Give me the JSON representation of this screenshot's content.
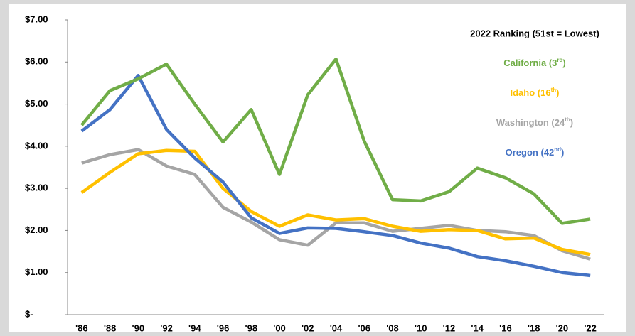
{
  "chart_data": {
    "type": "line",
    "legend_title": "2022 Ranking (51st = Lowest)",
    "legend": "top right",
    "categories": [
      "'86",
      "'88",
      "'90",
      "'92",
      "'94",
      "'96",
      "'98",
      "'00",
      "'02",
      "'04",
      "'06",
      "'08",
      "'10",
      "'12",
      "'14",
      "'16",
      "'18",
      "'20",
      "'22"
    ],
    "series": [
      {
        "name": "California (3rd)",
        "color": "#70ad47",
        "values": [
          4.5,
          5.32,
          5.6,
          5.95,
          5.0,
          4.1,
          4.87,
          3.33,
          5.22,
          6.07,
          4.12,
          2.73,
          2.7,
          2.92,
          3.48,
          3.25,
          2.87,
          2.17,
          2.27
        ]
      },
      {
        "name": "Idaho (16th)",
        "color": "#ffc000",
        "values": [
          2.9,
          3.38,
          3.82,
          3.9,
          3.88,
          3.0,
          2.45,
          2.1,
          2.37,
          2.25,
          2.28,
          2.1,
          1.98,
          2.02,
          2.0,
          1.8,
          1.82,
          1.55,
          1.43
        ]
      },
      {
        "name": "Washington (24th)",
        "color": "#a5a5a5",
        "values": [
          3.6,
          3.8,
          3.92,
          3.53,
          3.33,
          2.55,
          2.2,
          1.78,
          1.65,
          2.18,
          2.18,
          1.98,
          2.05,
          2.12,
          2.0,
          1.97,
          1.88,
          1.52,
          1.32
        ]
      },
      {
        "name": "Oregon (42nd)",
        "color": "#4472c4",
        "values": [
          4.36,
          4.87,
          5.68,
          4.4,
          3.72,
          3.15,
          2.3,
          1.93,
          2.06,
          2.05,
          1.97,
          1.88,
          1.7,
          1.58,
          1.38,
          1.28,
          1.15,
          1.0,
          0.93
        ]
      }
    ],
    "ylim": [
      0,
      7
    ],
    "yticks": [
      {
        "value": 0,
        "label": "$-"
      },
      {
        "value": 1,
        "label": "$1.00"
      },
      {
        "value": 2,
        "label": "$2.00"
      },
      {
        "value": 3,
        "label": "$3.00"
      },
      {
        "value": 4,
        "label": "$4.00"
      },
      {
        "value": 5,
        "label": "$5.00"
      },
      {
        "value": 6,
        "label": "$6.00"
      },
      {
        "value": 7,
        "label": "$7.00"
      }
    ],
    "grid": false
  }
}
